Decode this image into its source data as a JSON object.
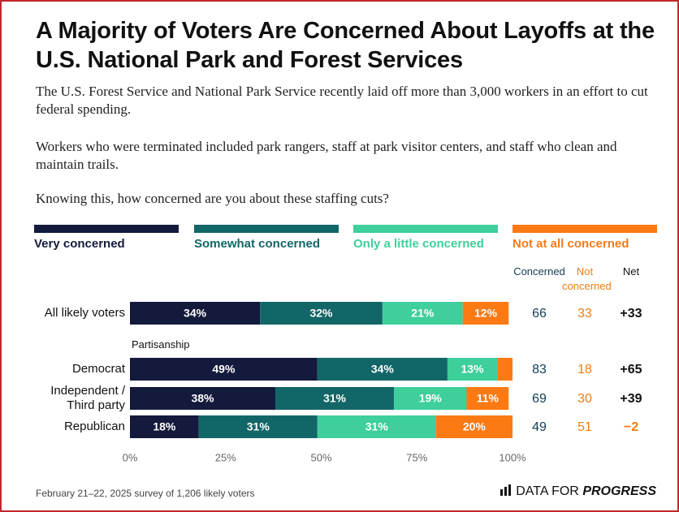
{
  "chart_data": {
    "type": "stacked-bar-horizontal",
    "title": "A Majority of Voters Are Concerned About Layoffs at the U.S. National Park and Forest Services",
    "subtitle": [
      "The U.S. Forest Service and National Park Service recently laid off more than 3,000 workers in an effort to cut federal spending.",
      "Workers who were terminated included park rangers, staff at park visitor centers, and staff who clean and maintain trails.",
      "Knowing this, how concerned are you about these staffing cuts?"
    ],
    "categories": [
      "All likely voters",
      "Democrat",
      "Independent / Third party",
      "Republican"
    ],
    "group_label": "Partisanship",
    "series": [
      {
        "name": "Very concerned",
        "color": "#141a3c",
        "values": [
          34,
          49,
          38,
          18
        ],
        "value_labels": [
          "34%",
          "49%",
          "38%",
          "18%"
        ]
      },
      {
        "name": "Somewhat concerned",
        "color": "#136668",
        "values": [
          32,
          34,
          31,
          31
        ],
        "value_labels": [
          "32%",
          "34%",
          "31%",
          "31%"
        ]
      },
      {
        "name": "Only a little concerned",
        "color": "#3ecf9a",
        "values": [
          21,
          13,
          19,
          31
        ],
        "value_labels": [
          "21%",
          "13%",
          "19%",
          "31%"
        ]
      },
      {
        "name": "Not at all concerned",
        "color": "#fb7a14",
        "values": [
          12,
          4,
          11,
          20
        ],
        "value_labels": [
          "12%",
          null,
          "11%",
          "20%"
        ]
      }
    ],
    "columns": [
      "Concerned",
      "Not concerned",
      "Net"
    ],
    "concerned": {
      "color": "#123d52",
      "values": [
        66,
        83,
        69,
        49
      ]
    },
    "not_concerned": {
      "color": "#f07d10",
      "values": [
        33,
        18,
        30,
        51
      ]
    },
    "net": {
      "color": "#111111",
      "values": [
        33,
        65,
        39,
        -2
      ],
      "value_labels": [
        "+33",
        "+65",
        "+39",
        "−2"
      ]
    },
    "xlim": [
      0,
      100
    ],
    "xticks": [
      {
        "value": 0,
        "label": "0%"
      },
      {
        "value": 25,
        "label": "25%"
      },
      {
        "value": 50,
        "label": "50%"
      },
      {
        "value": 75,
        "label": "75%"
      },
      {
        "value": 100,
        "label": "100%"
      }
    ],
    "source": "February 21–22, 2025 survey of 1,206 likely voters",
    "logo": [
      "DATA FOR",
      "PROGRESS"
    ]
  }
}
